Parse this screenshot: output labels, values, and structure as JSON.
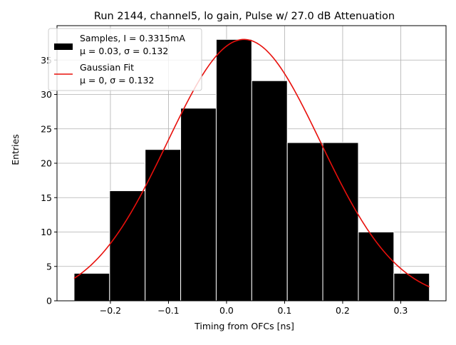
{
  "chart_data": {
    "type": "bar",
    "title": "Run 2144, channel5, lo gain, Pulse w/ 27.0 dB Attenuation",
    "xlabel": "Timing from OFCs [ns]",
    "ylabel": "Entries",
    "xlim": [
      -0.292,
      0.378
    ],
    "ylim": [
      0,
      40
    ],
    "grid": true,
    "legend_placement": "top-left",
    "x_ticks": [
      {
        "value": -0.2,
        "label": "−0.2"
      },
      {
        "value": -0.1,
        "label": "−0.1"
      },
      {
        "value": 0.0,
        "label": "0.0"
      },
      {
        "value": 0.1,
        "label": "0.1"
      },
      {
        "value": 0.2,
        "label": "0.2"
      },
      {
        "value": 0.3,
        "label": "0.3"
      }
    ],
    "y_ticks": [
      {
        "value": 0,
        "label": "0"
      },
      {
        "value": 5,
        "label": "5"
      },
      {
        "value": 10,
        "label": "10"
      },
      {
        "value": 15,
        "label": "15"
      },
      {
        "value": 20,
        "label": "20"
      },
      {
        "value": 25,
        "label": "25"
      },
      {
        "value": 30,
        "label": "30"
      },
      {
        "value": 35,
        "label": "35"
      }
    ],
    "bin_edges": [
      -0.2626,
      -0.2014,
      -0.1402,
      -0.079,
      -0.0178,
      0.0434,
      0.1046,
      0.1658,
      0.227,
      0.2882,
      0.3494
    ],
    "counts": [
      4,
      16,
      22,
      28,
      38,
      32,
      23,
      23,
      10,
      4
    ],
    "fit": {
      "mu": 0.03,
      "sigma": 0.132,
      "peak": 38,
      "x_range": [
        -0.2626,
        0.3494
      ]
    },
    "colors": {
      "bars": "#000000",
      "bar_edge": "#ffffff",
      "fit": "#e8100c",
      "grid": "#b0b0b0"
    },
    "legend": [
      {
        "line1": "Samples, I = 0.3315mA",
        "line2": "μ = 0.03, σ = 0.132",
        "swatch": "patch"
      },
      {
        "line1": "Gaussian Fit",
        "line2": "μ = 0, σ = 0.132",
        "swatch": "line"
      }
    ]
  }
}
